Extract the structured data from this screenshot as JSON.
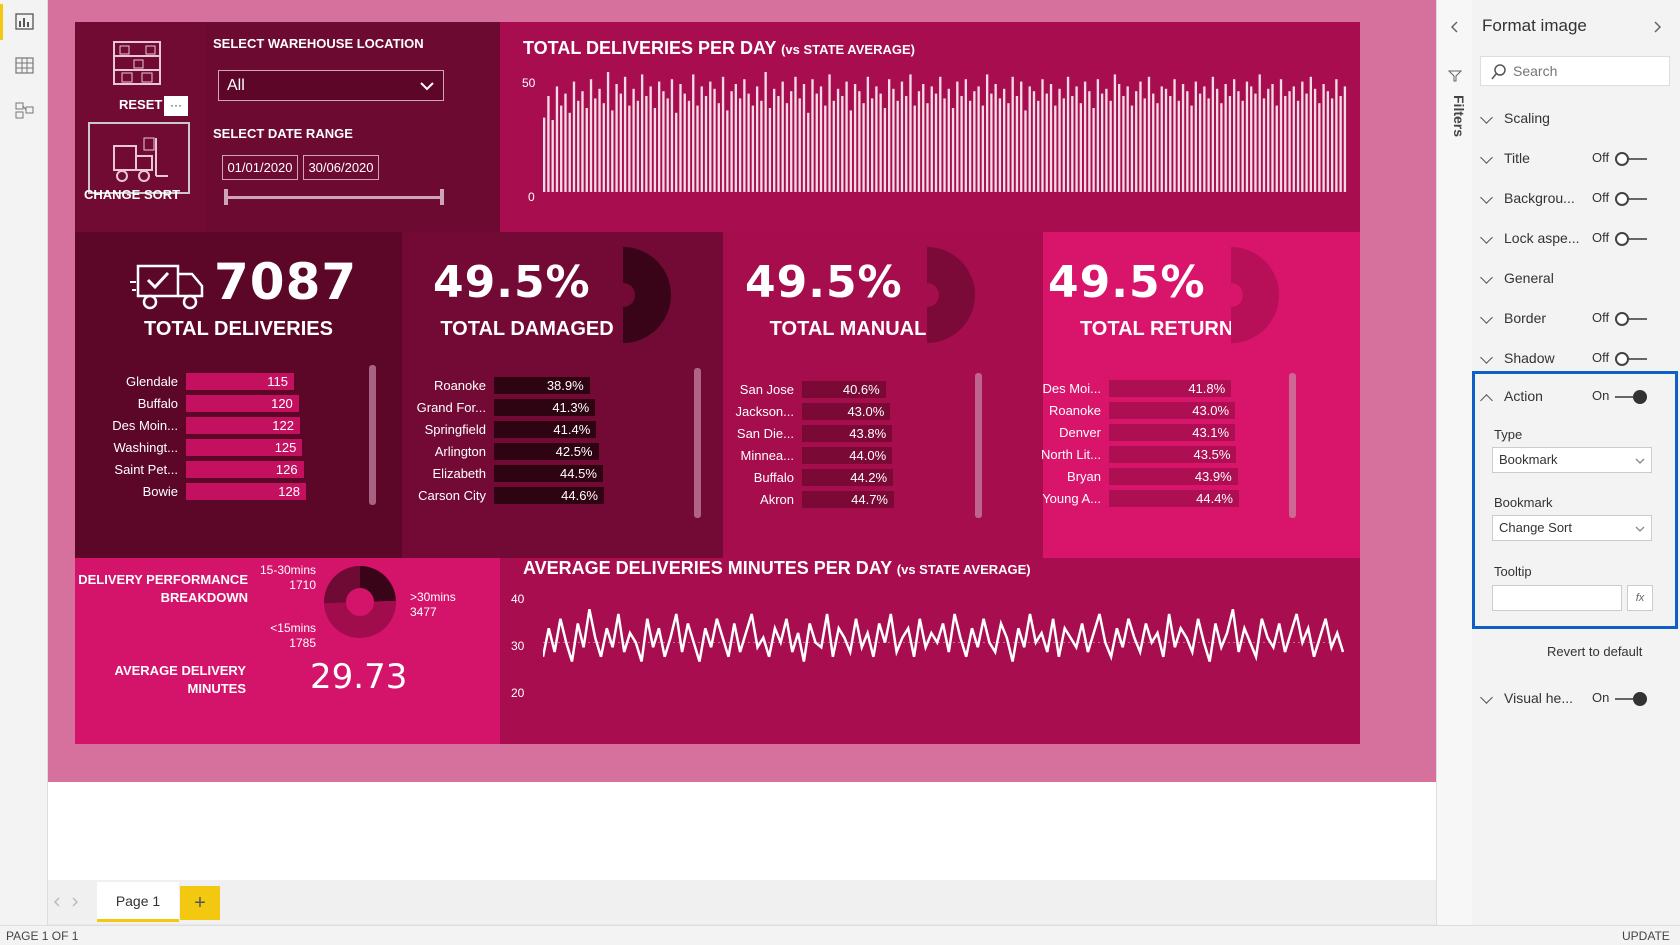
{
  "left_rail": {
    "icons": [
      "report-view-icon",
      "data-view-icon",
      "model-view-icon"
    ]
  },
  "header": {
    "reset_label": "RESET",
    "more_label": "···",
    "change_sort_label": "CHANGE SORT",
    "warehouse_label": "SELECT WAREHOUSE LOCATION",
    "warehouse_value": "All",
    "date_label": "SELECT DATE RANGE",
    "date_start": "01/01/2020",
    "date_end": "30/06/2020"
  },
  "daily_chart": {
    "title": "TOTAL DELIVERIES PER DAY",
    "subtitle": "(vs STATE AVERAGE)",
    "y_ticks": [
      "50",
      "0"
    ]
  },
  "kpis": {
    "deliveries": {
      "value": "7087",
      "label": "TOTAL DELIVERIES"
    },
    "damaged": {
      "value": "49.5%",
      "label": "TOTAL DAMAGED"
    },
    "manual": {
      "value": "49.5%",
      "label": "TOTAL MANUAL"
    },
    "returned": {
      "value": "49.5%",
      "label": "TOTAL RETURNED"
    }
  },
  "lists": {
    "deliveries": [
      {
        "name": "Glendale",
        "value": "115",
        "pct": 0.9
      },
      {
        "name": "Buffalo",
        "value": "120",
        "pct": 0.94
      },
      {
        "name": "Des Moin...",
        "value": "122",
        "pct": 0.95
      },
      {
        "name": "Washingt...",
        "value": "125",
        "pct": 0.97
      },
      {
        "name": "Saint Pet...",
        "value": "126",
        "pct": 0.98
      },
      {
        "name": "Bowie",
        "value": "128",
        "pct": 1.0
      }
    ],
    "damaged": [
      {
        "name": "Roanoke",
        "value": "38.9%",
        "pct": 0.87
      },
      {
        "name": "Grand For...",
        "value": "41.3%",
        "pct": 0.92
      },
      {
        "name": "Springfield",
        "value": "41.4%",
        "pct": 0.93
      },
      {
        "name": "Arlington",
        "value": "42.5%",
        "pct": 0.95
      },
      {
        "name": "Elizabeth",
        "value": "44.5%",
        "pct": 0.99
      },
      {
        "name": "Carson City",
        "value": "44.6%",
        "pct": 1.0
      }
    ],
    "manual": [
      {
        "name": "San Jose",
        "value": "40.6%",
        "pct": 0.91
      },
      {
        "name": "Jackson...",
        "value": "43.0%",
        "pct": 0.96
      },
      {
        "name": "San Die...",
        "value": "43.8%",
        "pct": 0.98
      },
      {
        "name": "Minnea...",
        "value": "44.0%",
        "pct": 0.98
      },
      {
        "name": "Buffalo",
        "value": "44.2%",
        "pct": 0.99
      },
      {
        "name": "Akron",
        "value": "44.7%",
        "pct": 1.0
      }
    ],
    "returned": [
      {
        "name": "Des Moi...",
        "value": "41.8%",
        "pct": 0.94
      },
      {
        "name": "Roanoke",
        "value": "43.0%",
        "pct": 0.97
      },
      {
        "name": "Denver",
        "value": "43.1%",
        "pct": 0.97
      },
      {
        "name": "North Lit...",
        "value": "43.5%",
        "pct": 0.98
      },
      {
        "name": "Bryan",
        "value": "43.9%",
        "pct": 0.99
      },
      {
        "name": "Young A...",
        "value": "44.4%",
        "pct": 1.0
      }
    ]
  },
  "performance": {
    "title_line1": "DELIVERY PERFORMANCE",
    "title_line2": "BREAKDOWN",
    "seg1_label": "15-30mins",
    "seg1_value": "1710",
    "seg2_label": ">30mins",
    "seg2_value": "3477",
    "seg3_label": "<15mins",
    "seg3_value": "1785",
    "avg_label_line1": "AVERAGE DELIVERY",
    "avg_label_line2": "MINUTES",
    "avg_value": "29.73"
  },
  "minutes_chart": {
    "title": "AVERAGE DELIVERIES MINUTES PER DAY",
    "subtitle": "(vs STATE AVERAGE)",
    "y_ticks": [
      "40",
      "30",
      "20"
    ]
  },
  "chart_data": [
    {
      "type": "bar",
      "title": "TOTAL DELIVERIES PER DAY",
      "subtitle": "(vs STATE AVERAGE)",
      "ylim": [
        0,
        50
      ],
      "values": [
        31,
        40,
        30,
        44,
        36,
        41,
        33,
        46,
        38,
        42,
        35,
        47,
        39,
        43,
        37,
        50,
        34,
        45,
        41,
        48,
        36,
        43,
        38,
        49,
        40,
        44,
        35,
        46,
        42,
        39,
        47,
        33,
        45,
        41,
        38,
        49,
        36,
        44,
        40,
        46,
        43,
        37,
        48,
        34,
        42,
        45,
        39,
        47,
        41,
        36,
        44,
        38,
        50,
        35,
        43,
        40,
        46,
        37,
        42,
        48,
        39,
        45,
        33,
        47,
        41,
        44,
        36,
        49,
        38,
        43,
        40,
        46,
        34,
        45,
        42,
        37,
        48,
        39,
        44,
        41,
        35,
        47,
        43,
        38,
        46,
        40,
        49,
        36,
        42,
        45,
        37,
        44,
        41,
        48,
        39,
        43,
        35,
        46,
        40,
        47,
        38,
        42,
        44,
        36,
        49,
        41,
        45,
        39,
        43,
        37,
        48,
        40,
        46,
        34,
        44,
        42,
        38,
        47,
        41,
        45,
        36,
        43,
        39,
        48,
        40,
        44,
        37,
        46,
        42,
        35,
        47,
        41,
        43,
        38,
        49,
        45,
        40,
        44,
        36,
        42,
        46,
        39,
        48,
        41,
        37,
        44,
        43,
        40,
        47,
        38,
        45,
        42,
        36,
        46,
        41,
        44,
        39,
        48,
        43,
        37,
        45,
        40,
        47,
        42,
        38,
        46,
        44,
        41,
        49,
        39,
        43,
        45,
        36,
        47,
        40,
        42,
        44,
        38,
        46,
        41,
        48,
        43,
        37,
        45,
        42,
        39,
        47,
        40,
        44
      ]
    },
    {
      "type": "line",
      "title": "AVERAGE DELIVERIES MINUTES PER DAY",
      "subtitle": "(vs STATE AVERAGE)",
      "ylim": [
        20,
        40
      ],
      "values": [
        27,
        33,
        28,
        35,
        30,
        26,
        34,
        29,
        37,
        31,
        27,
        33,
        29,
        36,
        28,
        32,
        30,
        26,
        35,
        29,
        33,
        27,
        31,
        36,
        28,
        34,
        30,
        26,
        33,
        29,
        35,
        31,
        27,
        34,
        28,
        32,
        36,
        29,
        31,
        27,
        33,
        30,
        35,
        28,
        32,
        26,
        34,
        30,
        29,
        36,
        27,
        33,
        31,
        28,
        35,
        29,
        32,
        27,
        34,
        30,
        36,
        28,
        31,
        33,
        27,
        35,
        29,
        32,
        30,
        34,
        28,
        36,
        31,
        27,
        33,
        29,
        35,
        30,
        28,
        34,
        31,
        26,
        33,
        29,
        36,
        30,
        32,
        28,
        35,
        27,
        33,
        31,
        29,
        34,
        28,
        32,
        36,
        30,
        27,
        33,
        29,
        35,
        31,
        28,
        34,
        30,
        32,
        27,
        36,
        29,
        33,
        31,
        28,
        35,
        30,
        26,
        34,
        29,
        32,
        37,
        28,
        33,
        30,
        27,
        35,
        31,
        29,
        34,
        28,
        32,
        36,
        30,
        33,
        27,
        31,
        35,
        29,
        32,
        28
      ]
    },
    {
      "type": "pie",
      "title": "DELIVERY PERFORMANCE BREAKDOWN",
      "categories": [
        "15-30mins",
        ">30mins",
        "<15mins"
      ],
      "values": [
        1710,
        3477,
        1785
      ]
    }
  ],
  "filters_label": "Filters",
  "format_pane": {
    "title": "Format image",
    "search_placeholder": "Search",
    "sections": [
      {
        "name": "Scaling",
        "state": "",
        "toggle": ""
      },
      {
        "name": "Title",
        "state": "Off",
        "toggle": "off"
      },
      {
        "name": "Backgrou...",
        "state": "Off",
        "toggle": "off"
      },
      {
        "name": "Lock aspe...",
        "state": "Off",
        "toggle": "off"
      },
      {
        "name": "General",
        "state": "",
        "toggle": ""
      },
      {
        "name": "Border",
        "state": "Off",
        "toggle": "off"
      },
      {
        "name": "Shadow",
        "state": "Off",
        "toggle": "off"
      }
    ],
    "action": {
      "name": "Action",
      "state": "On",
      "type_label": "Type",
      "type_value": "Bookmark",
      "bookmark_label": "Bookmark",
      "bookmark_value": "Change Sort",
      "tooltip_label": "Tooltip",
      "fx_label": "fx"
    },
    "revert_label": "Revert to default",
    "visual_header": {
      "name": "Visual he...",
      "state": "On"
    }
  },
  "tabs": {
    "page_label": "Page 1",
    "add_label": "+"
  },
  "status": {
    "page_info": "PAGE 1 OF 1",
    "update_label": "UPDATE"
  }
}
